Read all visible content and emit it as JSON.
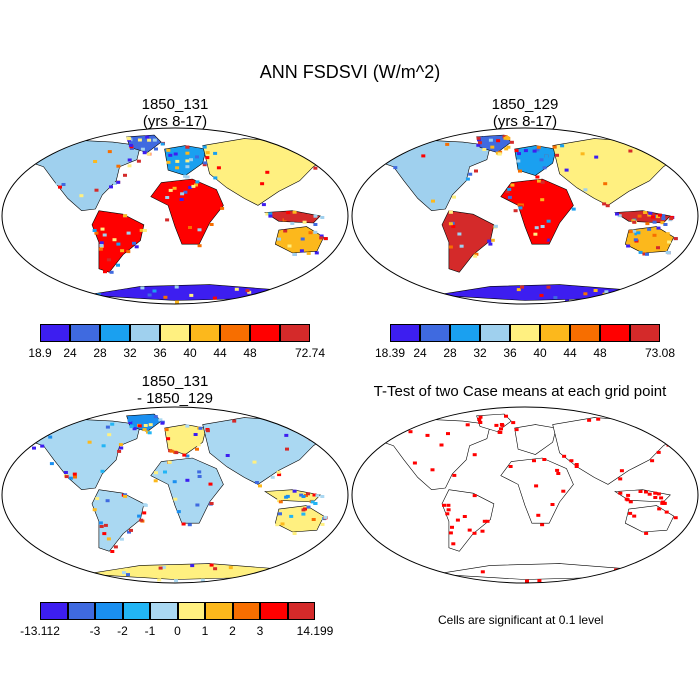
{
  "main_title": "ANN FSDSVI (W/m^2)",
  "colors": {
    "bright_red": "#ff0000",
    "map_border": "#000000"
  },
  "chart_data": [
    {
      "type": "heatmap",
      "title": "1850_131",
      "subtitle": "(yrs 8-17)",
      "projection": "Robinson world map",
      "colorbar": {
        "tick_labels": [
          "18.9",
          "24",
          "28",
          "32",
          "36",
          "40",
          "44",
          "48",
          "72.74"
        ],
        "colors": [
          "#3d1ef0",
          "#3f6ae0",
          "#1aa0f0",
          "#9fd0ee",
          "#fff080",
          "#fcb81c",
          "#f76e00",
          "#ff0000",
          "#d42a2a"
        ]
      }
    },
    {
      "type": "heatmap",
      "title": "1850_129",
      "subtitle": "(yrs 8-17)",
      "projection": "Robinson world map",
      "colorbar": {
        "tick_labels": [
          "18.39",
          "24",
          "28",
          "32",
          "36",
          "40",
          "44",
          "48",
          "73.08"
        ],
        "colors": [
          "#3d1ef0",
          "#3f6ae0",
          "#1aa0f0",
          "#9fd0ee",
          "#fff080",
          "#fcb81c",
          "#f76e00",
          "#ff0000",
          "#d42a2a"
        ]
      }
    },
    {
      "type": "heatmap",
      "title": "1850_131",
      "subtitle": "- 1850_129",
      "projection": "Robinson world map",
      "colorbar": {
        "tick_labels": [
          "-13.112",
          "-3",
          "-2",
          "-1",
          "0",
          "1",
          "2",
          "3",
          "14.199"
        ],
        "tick_boundaries": [
          0,
          2,
          3,
          4,
          5,
          6,
          7,
          8,
          10
        ],
        "colors": [
          "#3d1ef0",
          "#3f6ae0",
          "#1a8ff0",
          "#22b5f5",
          "#aad8f2",
          "#fff080",
          "#fcb81c",
          "#f76e00",
          "#ff0000",
          "#d42a2a"
        ]
      }
    },
    {
      "type": "heatmap",
      "title": "T-Test of two Case means at each grid point",
      "projection": "Robinson world map",
      "note": "Cells are significant at 0.1 level",
      "significant_color": "#ff0000"
    }
  ]
}
